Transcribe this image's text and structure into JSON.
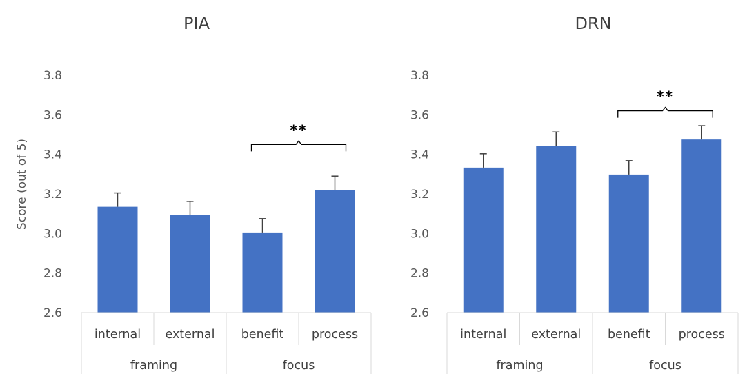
{
  "y_axis_label": "Score (out of 5)",
  "chart_data": [
    {
      "type": "bar",
      "title": "PIA",
      "ylabel": "Score (out of 5)",
      "ylim": [
        2.6,
        3.8
      ],
      "yticks": [
        "2.6",
        "2.8",
        "3.0",
        "3.2",
        "3.4",
        "3.6",
        "3.8"
      ],
      "categories": [
        "internal",
        "external",
        "benefit",
        "process"
      ],
      "groups": [
        {
          "label": "framing",
          "categories": [
            "internal",
            "external"
          ]
        },
        {
          "label": "focus",
          "categories": [
            "benefit",
            "process"
          ]
        }
      ],
      "values": [
        3.135,
        3.092,
        3.005,
        3.22
      ],
      "errors": [
        0.07,
        0.07,
        0.07,
        0.07
      ],
      "bar_color": "#4472C4",
      "grid": false,
      "annotations": [
        {
          "text": "**",
          "between": [
            "benefit",
            "process"
          ],
          "at_y": 3.45
        }
      ]
    },
    {
      "type": "bar",
      "title": "DRN",
      "ylabel": "",
      "ylim": [
        2.6,
        3.8
      ],
      "yticks": [
        "2.6",
        "2.8",
        "3.0",
        "3.2",
        "3.4",
        "3.6",
        "3.8"
      ],
      "categories": [
        "internal",
        "external",
        "benefit",
        "process"
      ],
      "groups": [
        {
          "label": "framing",
          "categories": [
            "internal",
            "external"
          ]
        },
        {
          "label": "focus",
          "categories": [
            "benefit",
            "process"
          ]
        }
      ],
      "values": [
        3.333,
        3.443,
        3.298,
        3.475
      ],
      "errors": [
        0.07,
        0.07,
        0.07,
        0.07
      ],
      "bar_color": "#4472C4",
      "grid": false,
      "annotations": [
        {
          "text": "**",
          "between": [
            "benefit",
            "process"
          ],
          "at_y": 3.62
        }
      ]
    }
  ]
}
